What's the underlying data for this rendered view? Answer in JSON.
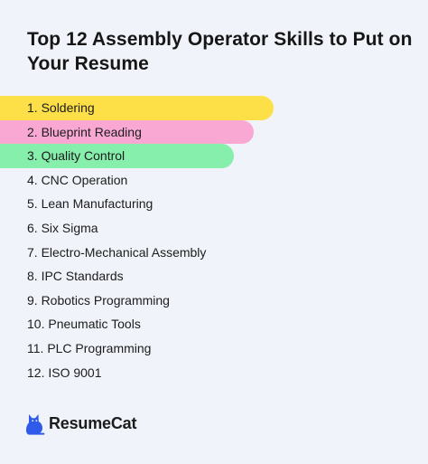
{
  "title": "Top 12 Assembly Operator Skills to Put on Your Resume",
  "skills": [
    {
      "label": "1. Soldering",
      "highlight": "#fde047"
    },
    {
      "label": "2. Blueprint Reading",
      "highlight": "#f9a8d4"
    },
    {
      "label": "3. Quality Control",
      "highlight": "#86efac"
    },
    {
      "label": "4. CNC Operation"
    },
    {
      "label": "5. Lean Manufacturing"
    },
    {
      "label": "6. Six Sigma"
    },
    {
      "label": "7. Electro-Mechanical Assembly"
    },
    {
      "label": "8. IPC Standards"
    },
    {
      "label": "9. Robotics Programming"
    },
    {
      "label": "10. Pneumatic Tools"
    },
    {
      "label": "11. PLC Programming"
    },
    {
      "label": "12. ISO 9001"
    }
  ],
  "brand": {
    "name": "ResumeCat",
    "icon": "cat-icon",
    "color": "#2f5bea"
  }
}
